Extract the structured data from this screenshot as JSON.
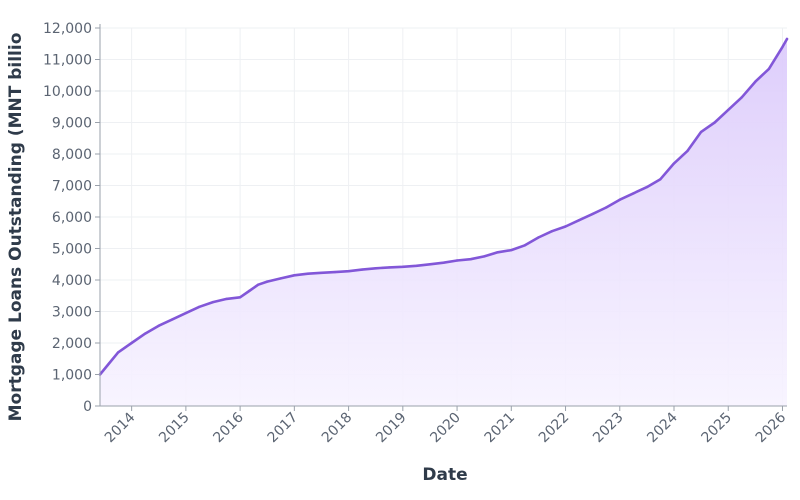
{
  "chart_data": {
    "type": "area",
    "xlabel": "Date",
    "ylabel": "Mortgage Loans Outstanding (MNT billio",
    "ylim": [
      0,
      12000
    ],
    "xlim": [
      "2013-06",
      "2026-02"
    ],
    "y_ticks": [
      {
        "value": 0,
        "label": "0"
      },
      {
        "value": 1000,
        "label": "1,000"
      },
      {
        "value": 2000,
        "label": "2,000"
      },
      {
        "value": 3000,
        "label": "3,000"
      },
      {
        "value": 4000,
        "label": "4,000"
      },
      {
        "value": 5000,
        "label": "5,000"
      },
      {
        "value": 6000,
        "label": "6,000"
      },
      {
        "value": 7000,
        "label": "7,000"
      },
      {
        "value": 8000,
        "label": "8,000"
      },
      {
        "value": 9000,
        "label": "9,000"
      },
      {
        "value": 10000,
        "label": "10,000"
      },
      {
        "value": 11000,
        "label": "11,000"
      },
      {
        "value": 12000,
        "label": "12,000"
      }
    ],
    "x_ticks": [
      {
        "value": "2014-01",
        "label": "2014"
      },
      {
        "value": "2015-01",
        "label": "2015"
      },
      {
        "value": "2016-01",
        "label": "2016"
      },
      {
        "value": "2017-01",
        "label": "2017"
      },
      {
        "value": "2018-01",
        "label": "2018"
      },
      {
        "value": "2019-01",
        "label": "2019"
      },
      {
        "value": "2020-01",
        "label": "2020"
      },
      {
        "value": "2021-01",
        "label": "2021"
      },
      {
        "value": "2022-01",
        "label": "2022"
      },
      {
        "value": "2023-01",
        "label": "2023"
      },
      {
        "value": "2024-01",
        "label": "2024"
      },
      {
        "value": "2025-01",
        "label": "2025"
      },
      {
        "value": "2026-01",
        "label": "2026"
      }
    ],
    "grid": true,
    "legend": "none",
    "colors": {
      "line": "#8257d8",
      "fill_top": "#dccbfb",
      "fill_bottom": "#f7f3ff",
      "axis": "#9aa1ab",
      "grid": "#eef0f3"
    },
    "series": [
      {
        "x": [
          "2013-06",
          "2013-08",
          "2013-10",
          "2014-01",
          "2014-04",
          "2014-07",
          "2014-10",
          "2015-01",
          "2015-04",
          "2015-07",
          "2015-10",
          "2016-01",
          "2016-03",
          "2016-05",
          "2016-07",
          "2016-10",
          "2017-01",
          "2017-04",
          "2017-07",
          "2017-10",
          "2018-01",
          "2018-04",
          "2018-07",
          "2018-10",
          "2019-01",
          "2019-04",
          "2019-07",
          "2019-10",
          "2020-01",
          "2020-04",
          "2020-07",
          "2020-10",
          "2021-01",
          "2021-04",
          "2021-07",
          "2021-10",
          "2022-01",
          "2022-04",
          "2022-07",
          "2022-10",
          "2023-01",
          "2023-04",
          "2023-07",
          "2023-10",
          "2024-01",
          "2024-04",
          "2024-07",
          "2024-10",
          "2025-01",
          "2025-04",
          "2025-07",
          "2025-10",
          "2026-01",
          "2026-02"
        ],
        "y": [
          1000,
          1350,
          1700,
          2000,
          2300,
          2550,
          2750,
          2950,
          3150,
          3300,
          3400,
          3450,
          3650,
          3850,
          3950,
          4050,
          4150,
          4200,
          4230,
          4250,
          4280,
          4330,
          4370,
          4400,
          4420,
          4450,
          4500,
          4550,
          4620,
          4660,
          4750,
          4880,
          4950,
          5100,
          5350,
          5550,
          5700,
          5900,
          6100,
          6300,
          6550,
          6750,
          6950,
          7200,
          7700,
          8100,
          8700,
          9000,
          9400,
          9800,
          10300,
          10700,
          11400,
          11650
        ]
      }
    ]
  }
}
